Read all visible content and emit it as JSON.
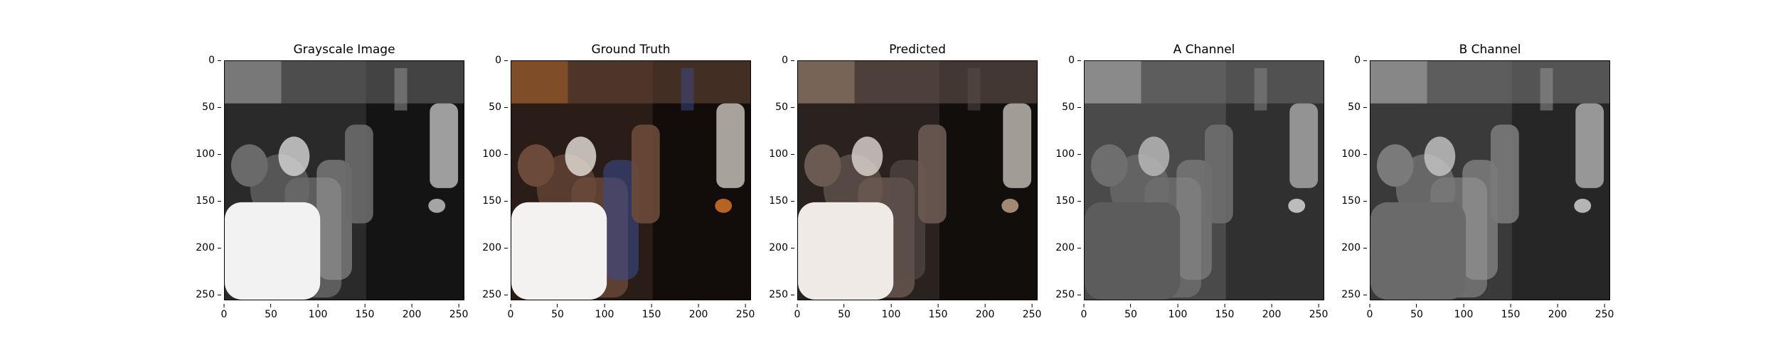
{
  "panels": [
    {
      "id": "gray",
      "title": "Grayscale Image",
      "tint": "gray"
    },
    {
      "id": "gt",
      "title": "Ground Truth",
      "tint": "color"
    },
    {
      "id": "pred",
      "title": "Predicted",
      "tint": "muted"
    },
    {
      "id": "a",
      "title": "A Channel",
      "tint": "channelA"
    },
    {
      "id": "b",
      "title": "B Channel",
      "tint": "channelB"
    }
  ],
  "axis": {
    "yticks": [
      "0",
      "50",
      "100",
      "150",
      "200",
      "250"
    ],
    "xticks": [
      "0",
      "50",
      "100",
      "150",
      "200",
      "250"
    ],
    "range": [
      0,
      256
    ]
  },
  "colors": {
    "background": "#ffffff",
    "frame": "#000000"
  }
}
